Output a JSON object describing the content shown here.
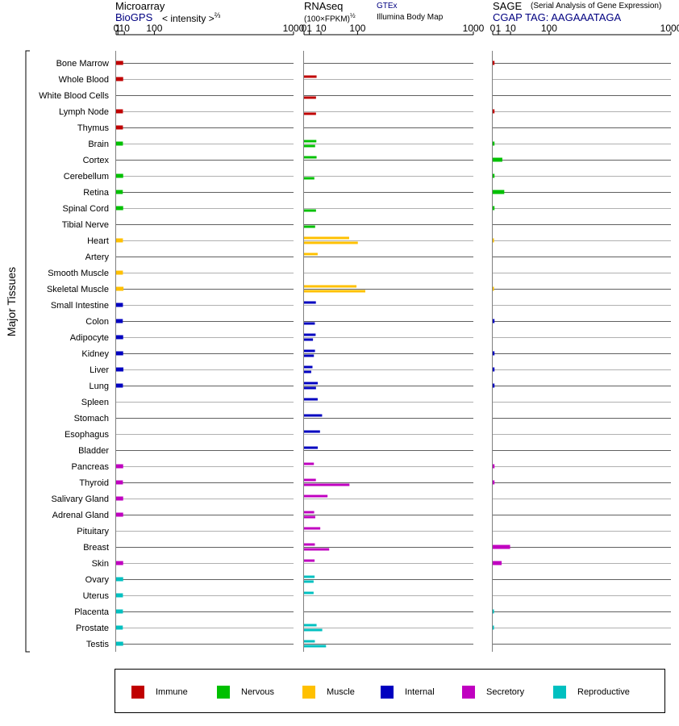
{
  "headers": {
    "microarray": {
      "title": "Microarray",
      "source": "BioGPS",
      "unit": "< intensity >",
      "exponent": "⅔"
    },
    "rnaseq": {
      "title": "RNAseq",
      "unit": "(100×FPKM)",
      "exponent": "½",
      "source1": "GTEx",
      "source2": "Illumina Body Map"
    },
    "sage": {
      "title": "SAGE",
      "subtitle": "(Serial Analysis of Gene Expression)",
      "tag": "CGAP TAG: AAGAAATAGA"
    }
  },
  "side_label": "Major Tissues",
  "legend": [
    {
      "label": "Immune",
      "color": "#c00000"
    },
    {
      "label": "Nervous",
      "color": "#00c000"
    },
    {
      "label": "Muscle",
      "color": "#ffc000"
    },
    {
      "label": "Internal",
      "color": "#0000c0"
    },
    {
      "label": "Secretory",
      "color": "#c000c0"
    },
    {
      "label": "Reproductive",
      "color": "#00c0c0"
    }
  ],
  "chart_data": {
    "type": "bar",
    "orientation": "horizontal",
    "panels": [
      {
        "id": "microarray",
        "ticks": [
          "0",
          "1",
          "10",
          "100",
          "1000"
        ],
        "tick_values": [
          0,
          1,
          10,
          100,
          1000
        ],
        "scale": "power 2/3",
        "xlim": [
          0,
          1000
        ]
      },
      {
        "id": "rnaseq",
        "ticks": [
          "0",
          "1",
          "10",
          "100",
          "1000"
        ],
        "tick_values": [
          0,
          1,
          10,
          100,
          1000
        ],
        "scale": "power 1/2",
        "xlim": [
          0,
          1000
        ]
      },
      {
        "id": "sage",
        "ticks": [
          "0",
          "1",
          "10",
          "100",
          "1000"
        ],
        "tick_values": [
          0,
          1,
          10,
          100,
          1000
        ],
        "scale": "power 1/2",
        "xlim": [
          0,
          1000
        ]
      }
    ],
    "categories": [
      "Bone Marrow",
      "Whole Blood",
      "White Blood Cells",
      "Lymph Node",
      "Thymus",
      "Brain",
      "Cortex",
      "Cerebellum",
      "Retina",
      "Spinal Cord",
      "Tibial Nerve",
      "Heart",
      "Artery",
      "Smooth Muscle",
      "Skeletal Muscle",
      "Small Intestine",
      "Colon",
      "Adipocyte",
      "Kidney",
      "Liver",
      "Lung",
      "Spleen",
      "Stomach",
      "Esophagus",
      "Bladder",
      "Pancreas",
      "Thyroid",
      "Salivary Gland",
      "Adrenal Gland",
      "Pituitary",
      "Breast",
      "Skin",
      "Ovary",
      "Uterus",
      "Placenta",
      "Prostate",
      "Testis"
    ],
    "groups": [
      "Immune",
      "Immune",
      "Immune",
      "Immune",
      "Immune",
      "Nervous",
      "Nervous",
      "Nervous",
      "Nervous",
      "Nervous",
      "Nervous",
      "Muscle",
      "Muscle",
      "Muscle",
      "Muscle",
      "Internal",
      "Internal",
      "Internal",
      "Internal",
      "Internal",
      "Internal",
      "Internal",
      "Internal",
      "Internal",
      "Internal",
      "Secretory",
      "Secretory",
      "Secretory",
      "Secretory",
      "Secretory",
      "Secretory",
      "Secretory",
      "Reproductive",
      "Reproductive",
      "Reproductive",
      "Reproductive",
      "Reproductive"
    ],
    "microarray": [
      7.9,
      7.9,
      null,
      7.5,
      7.5,
      7.5,
      null,
      7.9,
      7.3,
      7.9,
      null,
      7.5,
      null,
      7.5,
      8.5,
      7.5,
      7.3,
      7.9,
      7.9,
      8.3,
      7.5,
      null,
      null,
      null,
      null,
      7.9,
      7.5,
      7.9,
      7.9,
      null,
      null,
      7.9,
      7.9,
      7.5,
      7.5,
      7.3,
      7.9
    ],
    "rnaseq_gtex": [
      null,
      5.5,
      null,
      null,
      null,
      5.3,
      5.5,
      null,
      null,
      null,
      null,
      71,
      6.5,
      null,
      96,
      4.9,
      null,
      4.7,
      4.2,
      2.5,
      6.6,
      6.5,
      11.4,
      8.9,
      6.6,
      3.4,
      4.9,
      19.3,
      3.6,
      9.2,
      4.1,
      3.9,
      3.9,
      3.2,
      null,
      5.5,
      4.1
    ],
    "rnaseq_ibm": [
      null,
      null,
      5.0,
      5.0,
      null,
      4.3,
      null,
      3.7,
      null,
      5.0,
      4.3,
      101,
      null,
      null,
      131,
      null,
      4.1,
      2.8,
      3.4,
      1.8,
      5.0,
      null,
      null,
      null,
      null,
      null,
      72,
      null,
      4.4,
      null,
      22.1,
      null,
      3.2,
      null,
      null,
      11.6,
      16.9
    ],
    "sage": [
      0.1,
      null,
      null,
      0.1,
      null,
      0.1,
      2.9,
      0.1,
      4.2,
      0.1,
      null,
      0.05,
      null,
      null,
      0.05,
      null,
      0.1,
      null,
      0.1,
      0.1,
      0.1,
      null,
      null,
      null,
      null,
      0.1,
      0.1,
      null,
      null,
      null,
      9.5,
      2.5,
      null,
      null,
      0.05,
      0.05,
      null
    ]
  }
}
